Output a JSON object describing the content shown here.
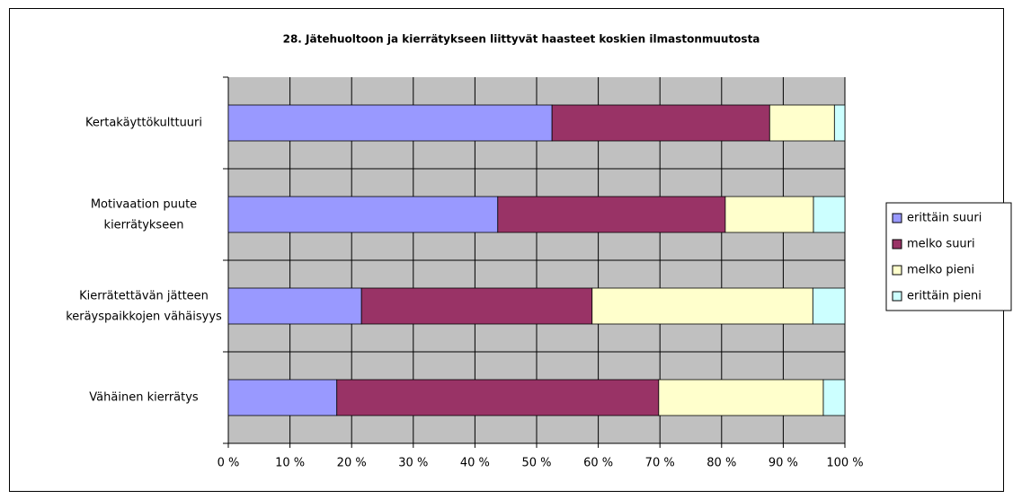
{
  "chart_data": {
    "type": "stacked_barh",
    "title": "28. Jätehuoltoon ja kierrätykseen liittyvät haasteet koskien ilmastonmuutosta",
    "categories": [
      "Kertakäyttökulttuuri",
      "Motivaation puute kierrätykseen",
      "Kierrätettävän jätteen keräyspaikkojen vähäisyys",
      "Vähäinen kierrätys"
    ],
    "series": [
      {
        "name": "erittäin suuri",
        "color": "#9999ff",
        "values": [
          52.5,
          43.7,
          21.6,
          17.6
        ]
      },
      {
        "name": "melko suuri",
        "color": "#993366",
        "values": [
          35.3,
          36.9,
          37.4,
          52.2
        ]
      },
      {
        "name": "melko pieni",
        "color": "#ffffcc",
        "values": [
          10.5,
          14.3,
          35.8,
          26.7
        ]
      },
      {
        "name": "erittäin pieni",
        "color": "#ccffff",
        "values": [
          1.7,
          5.1,
          5.2,
          3.5
        ]
      }
    ],
    "xlim": [
      0,
      100
    ],
    "xticks": [
      {
        "value": 0,
        "label": "0 %"
      },
      {
        "value": 10,
        "label": "10 %"
      },
      {
        "value": 20,
        "label": "20 %"
      },
      {
        "value": 30,
        "label": "30 %"
      },
      {
        "value": 40,
        "label": "40 %"
      },
      {
        "value": 50,
        "label": "50 %"
      },
      {
        "value": 60,
        "label": "60 %"
      },
      {
        "value": 70,
        "label": "70 %"
      },
      {
        "value": 80,
        "label": "80 %"
      },
      {
        "value": 90,
        "label": "90 %"
      },
      {
        "value": 100,
        "label": "100 %"
      }
    ],
    "grid": true,
    "legend": "right"
  }
}
